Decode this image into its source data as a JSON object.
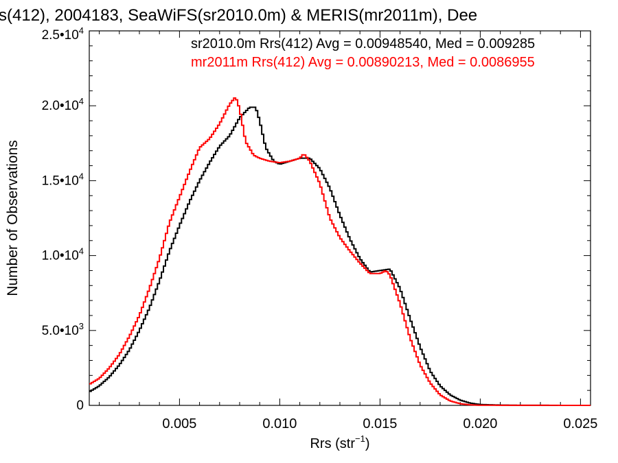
{
  "chart_data": {
    "type": "histogram",
    "title": "s(412), 2004183, SeaWiFS(sr2010.0m) & MERIS(mr2011m), Dee",
    "xlabel": "Rrs (str",
    "xlabel_sup": "−1",
    "xlabel_close": ")",
    "ylabel": "Number of Observations",
    "xlim": [
      0.0005,
      0.0255
    ],
    "ylim": [
      0,
      25000
    ],
    "x_ticks": [
      {
        "value": 0.005,
        "label": "0.005"
      },
      {
        "value": 0.01,
        "label": "0.010"
      },
      {
        "value": 0.015,
        "label": "0.015"
      },
      {
        "value": 0.02,
        "label": "0.020"
      },
      {
        "value": 0.025,
        "label": "0.025"
      }
    ],
    "y_ticks": [
      {
        "value": 0,
        "mantissa": "0",
        "exp": ""
      },
      {
        "value": 5000,
        "mantissa": "5.0•10",
        "exp": "3"
      },
      {
        "value": 10000,
        "mantissa": "1.0•10",
        "exp": "4"
      },
      {
        "value": 15000,
        "mantissa": "1.5•10",
        "exp": "4"
      },
      {
        "value": 20000,
        "mantissa": "2.0•10",
        "exp": "4"
      },
      {
        "value": 25000,
        "mantissa": "2.5•10",
        "exp": "4"
      }
    ],
    "legend_position": "top-right",
    "series": [
      {
        "name": "sr2010.0m Rrs(412) Avg = 0.00948540, Med = 0.009285",
        "color": "#000000",
        "points": [
          [
            0.0005,
            900
          ],
          [
            0.001,
            1300
          ],
          [
            0.0015,
            1900
          ],
          [
            0.002,
            2700
          ],
          [
            0.0025,
            3700
          ],
          [
            0.003,
            5000
          ],
          [
            0.0035,
            6500
          ],
          [
            0.004,
            8300
          ],
          [
            0.0045,
            10300
          ],
          [
            0.005,
            12000
          ],
          [
            0.0055,
            13600
          ],
          [
            0.006,
            15000
          ],
          [
            0.0065,
            16200
          ],
          [
            0.007,
            17300
          ],
          [
            0.0075,
            18000
          ],
          [
            0.008,
            19200
          ],
          [
            0.0085,
            19900
          ],
          [
            0.0088,
            19900
          ],
          [
            0.009,
            19000
          ],
          [
            0.0093,
            17200
          ],
          [
            0.0097,
            16300
          ],
          [
            0.01,
            16100
          ],
          [
            0.0105,
            16300
          ],
          [
            0.011,
            16500
          ],
          [
            0.0115,
            16500
          ],
          [
            0.012,
            15800
          ],
          [
            0.0125,
            14500
          ],
          [
            0.013,
            12700
          ],
          [
            0.0135,
            11100
          ],
          [
            0.014,
            9800
          ],
          [
            0.0145,
            8900
          ],
          [
            0.015,
            9000
          ],
          [
            0.0155,
            9100
          ],
          [
            0.016,
            7800
          ],
          [
            0.0165,
            5800
          ],
          [
            0.017,
            3900
          ],
          [
            0.0175,
            2300
          ],
          [
            0.018,
            1300
          ],
          [
            0.0185,
            700
          ],
          [
            0.019,
            350
          ],
          [
            0.0195,
            150
          ],
          [
            0.02,
            60
          ],
          [
            0.021,
            20
          ],
          [
            0.022,
            5
          ],
          [
            0.0255,
            0
          ]
        ]
      },
      {
        "name": "mr2011m Rrs(412) Avg = 0.00890213, Med = 0.0086955",
        "color": "#ff0000",
        "points": [
          [
            0.0005,
            1400
          ],
          [
            0.001,
            1800
          ],
          [
            0.0015,
            2500
          ],
          [
            0.002,
            3400
          ],
          [
            0.0025,
            4600
          ],
          [
            0.003,
            6000
          ],
          [
            0.0035,
            7800
          ],
          [
            0.004,
            9800
          ],
          [
            0.0045,
            12200
          ],
          [
            0.005,
            13900
          ],
          [
            0.0055,
            15600
          ],
          [
            0.006,
            17200
          ],
          [
            0.0065,
            17800
          ],
          [
            0.007,
            18800
          ],
          [
            0.0075,
            20100
          ],
          [
            0.0078,
            20600
          ],
          [
            0.008,
            19800
          ],
          [
            0.0083,
            17600
          ],
          [
            0.0087,
            16700
          ],
          [
            0.009,
            16500
          ],
          [
            0.0095,
            16300
          ],
          [
            0.01,
            16200
          ],
          [
            0.0105,
            16300
          ],
          [
            0.011,
            16500
          ],
          [
            0.0112,
            16800
          ],
          [
            0.0115,
            16300
          ],
          [
            0.012,
            14800
          ],
          [
            0.0125,
            12500
          ],
          [
            0.013,
            11200
          ],
          [
            0.0135,
            10300
          ],
          [
            0.014,
            9500
          ],
          [
            0.0145,
            8800
          ],
          [
            0.015,
            8800
          ],
          [
            0.0153,
            9000
          ],
          [
            0.0155,
            8700
          ],
          [
            0.016,
            6800
          ],
          [
            0.0165,
            4500
          ],
          [
            0.017,
            2700
          ],
          [
            0.0175,
            1500
          ],
          [
            0.018,
            700
          ],
          [
            0.0185,
            300
          ],
          [
            0.019,
            110
          ],
          [
            0.0195,
            35
          ],
          [
            0.02,
            10
          ],
          [
            0.0255,
            0
          ]
        ]
      }
    ]
  }
}
